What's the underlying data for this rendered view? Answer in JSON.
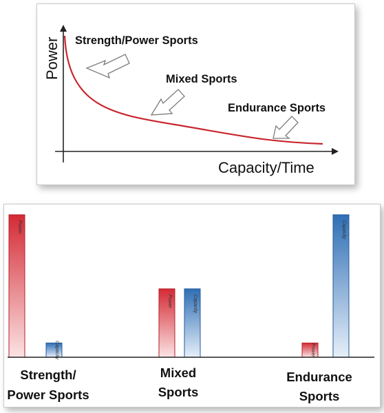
{
  "top_diagram": {
    "y_axis_label": "Power",
    "x_axis_label": "Capacity/Time",
    "curve_labels": [
      {
        "text": "Strength/Power Sports"
      },
      {
        "text": "Mixed Sports"
      },
      {
        "text": "Endurance Sports"
      }
    ]
  },
  "chart_data": {
    "type": "bar",
    "categories": [
      "Strength/\nPower Sports",
      "Mixed\nSports",
      "Endurance\nSports"
    ],
    "series": [
      {
        "name": "Power",
        "values": [
          100,
          48,
          10
        ]
      },
      {
        "name": "Capacity",
        "values": [
          10,
          48,
          100
        ]
      }
    ],
    "ylim": [
      0,
      100
    ],
    "colors": {
      "Power": "#d42a35",
      "Capacity": "#2f6fb5"
    },
    "legend": "none",
    "grid": false
  }
}
